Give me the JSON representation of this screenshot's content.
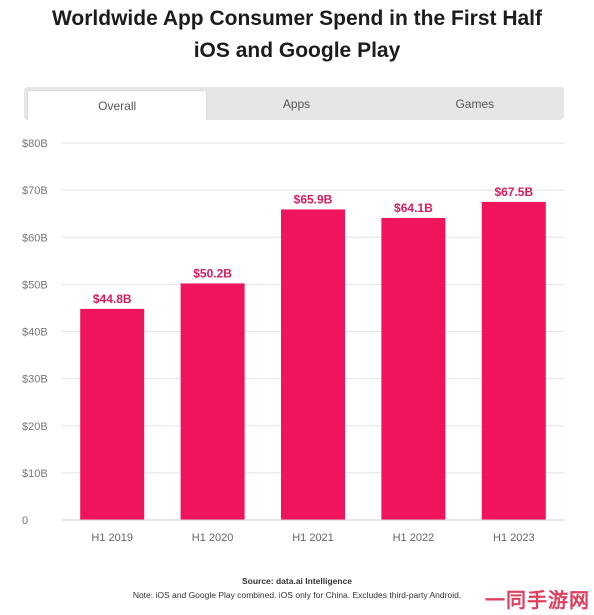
{
  "header": {
    "title_line1": "Worldwide App Consumer Spend in the First Half",
    "title_line2": "iOS and Google Play"
  },
  "tabs": [
    {
      "label": "Overall",
      "active": true
    },
    {
      "label": "Apps",
      "active": false
    },
    {
      "label": "Games",
      "active": false
    }
  ],
  "chart_data": {
    "type": "bar",
    "categories": [
      "H1 2019",
      "H1 2020",
      "H1 2021",
      "H1 2022",
      "H1 2023"
    ],
    "values": [
      44.8,
      50.2,
      65.9,
      64.1,
      67.5
    ],
    "data_labels": [
      "$44.8B",
      "$50.2B",
      "$65.9B",
      "$64.1B",
      "$67.5B"
    ],
    "y_ticks": [
      {
        "value": 0,
        "label": "0"
      },
      {
        "value": 10,
        "label": "$10B"
      },
      {
        "value": 20,
        "label": "$20B"
      },
      {
        "value": 30,
        "label": "$30B"
      },
      {
        "value": 40,
        "label": "$40B"
      },
      {
        "value": 50,
        "label": "$50B"
      },
      {
        "value": 60,
        "label": "$60B"
      },
      {
        "value": 70,
        "label": "$70B"
      },
      {
        "value": 80,
        "label": "$80B"
      }
    ],
    "ylim": [
      0,
      80
    ],
    "grid": true,
    "bar_color": "#f0145c",
    "label_color": "#d81b60"
  },
  "footer": {
    "source": "Source: data.ai Intelligence",
    "note": "Note: iOS and Google Play combined. iOS only for China. Excludes third-party Android."
  },
  "watermark": "一同手游网"
}
